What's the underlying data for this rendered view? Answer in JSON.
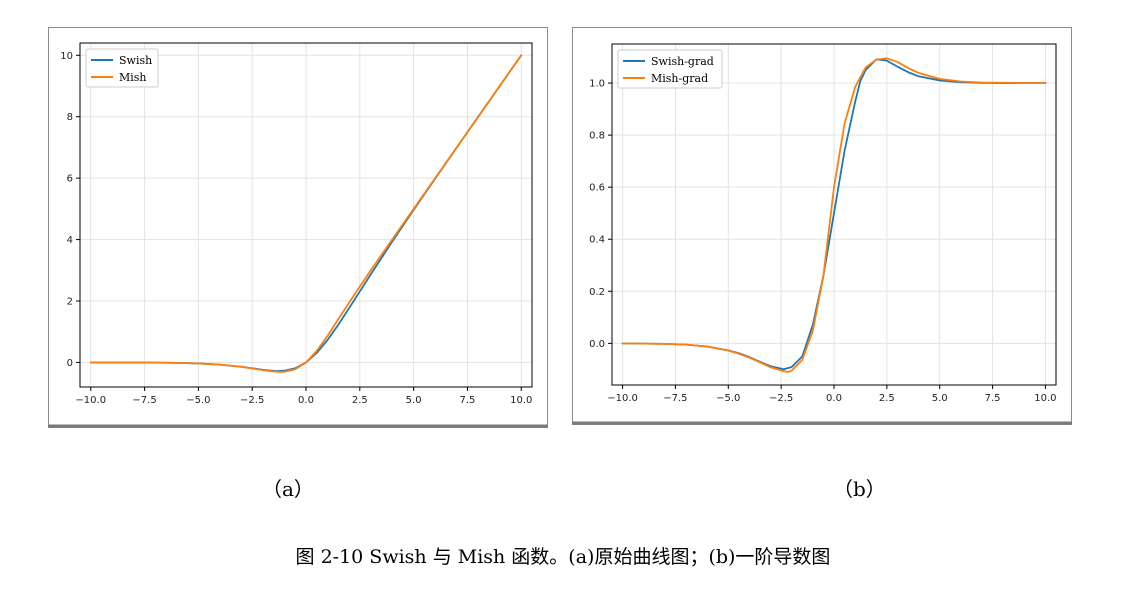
{
  "figure": {
    "caption": "图 2-10 Swish 与 Mish 函数。(a)原始曲线图；(b)一阶导数图",
    "sub_labels": [
      "（a）",
      "（b）"
    ]
  },
  "chart_data": [
    {
      "type": "line",
      "title": "",
      "xlabel": "",
      "ylabel": "",
      "xlim": [
        -10.5,
        10.5
      ],
      "ylim": [
        -0.8,
        10.4
      ],
      "xticks": [
        -10.0,
        -7.5,
        -5.0,
        -2.5,
        0.0,
        2.5,
        5.0,
        7.5,
        10.0
      ],
      "xtick_labels": [
        "−10.0",
        "−7.5",
        "−5.0",
        "−2.5",
        "0.0",
        "2.5",
        "5.0",
        "7.5",
        "10.0"
      ],
      "yticks": [
        0,
        2,
        4,
        6,
        8,
        10
      ],
      "ytick_labels": [
        "0",
        "2",
        "4",
        "6",
        "8",
        "10"
      ],
      "grid": true,
      "legend": "top-left",
      "series": [
        {
          "name": "Swish",
          "color": "#1f77b4",
          "x": [
            -10,
            -9,
            -8,
            -7,
            -6,
            -5,
            -4,
            -3,
            -2.5,
            -2,
            -1.5,
            -1.28,
            -1,
            -0.5,
            0,
            0.5,
            1,
            1.5,
            2,
            2.5,
            3,
            4,
            5,
            6,
            7,
            8,
            9,
            10
          ],
          "y": [
            0.0,
            -0.001,
            -0.003,
            -0.006,
            -0.015,
            -0.033,
            -0.072,
            -0.142,
            -0.189,
            -0.238,
            -0.274,
            -0.278,
            -0.269,
            -0.189,
            0.0,
            0.311,
            0.731,
            1.226,
            1.762,
            2.311,
            2.857,
            3.928,
            4.967,
            5.985,
            6.994,
            7.997,
            8.999,
            10.0
          ]
        },
        {
          "name": "Mish",
          "color": "#ff7f0e",
          "x": [
            -10,
            -9,
            -8,
            -7,
            -6,
            -5,
            -4,
            -3,
            -2.5,
            -2,
            -1.5,
            -1.2,
            -1,
            -0.5,
            0,
            0.5,
            1,
            1.5,
            2,
            2.5,
            3,
            4,
            5,
            6,
            7,
            8,
            9,
            10
          ],
          "y": [
            0.0,
            -0.001,
            -0.003,
            -0.006,
            -0.015,
            -0.034,
            -0.073,
            -0.146,
            -0.196,
            -0.252,
            -0.294,
            -0.309,
            -0.303,
            -0.222,
            0.0,
            0.375,
            0.865,
            1.411,
            1.944,
            2.473,
            2.987,
            3.997,
            5.0,
            6.0,
            7.0,
            8.0,
            9.0,
            10.0
          ]
        }
      ]
    },
    {
      "type": "line",
      "title": "",
      "xlabel": "",
      "ylabel": "",
      "xlim": [
        -10.5,
        10.5
      ],
      "ylim": [
        -0.16,
        1.15
      ],
      "xticks": [
        -10.0,
        -7.5,
        -5.0,
        -2.5,
        0.0,
        2.5,
        5.0,
        7.5,
        10.0
      ],
      "xtick_labels": [
        "−10.0",
        "−7.5",
        "−5.0",
        "−2.5",
        "0.0",
        "2.5",
        "5.0",
        "7.5",
        "10.0"
      ],
      "yticks": [
        0.0,
        0.2,
        0.4,
        0.6,
        0.8,
        1.0
      ],
      "ytick_labels": [
        "0.0",
        "0.2",
        "0.4",
        "0.6",
        "0.8",
        "1.0"
      ],
      "grid": true,
      "legend": "top-left",
      "series": [
        {
          "name": "Swish-grad",
          "color": "#1f77b4",
          "x": [
            -10,
            -9,
            -8,
            -7,
            -6,
            -5,
            -4.5,
            -4,
            -3.5,
            -3,
            -2.5,
            -2.4,
            -2,
            -1.5,
            -1,
            -0.5,
            0,
            0.5,
            1,
            1.25,
            1.5,
            2,
            2.5,
            3,
            3.5,
            4,
            5,
            6,
            7,
            8,
            9,
            10
          ],
          "y": [
            0.0,
            -0.001,
            -0.002,
            -0.005,
            -0.012,
            -0.027,
            -0.038,
            -0.053,
            -0.071,
            -0.088,
            -0.097,
            -0.1,
            -0.091,
            -0.05,
            0.072,
            0.26,
            0.5,
            0.74,
            0.928,
            1.009,
            1.05,
            1.091,
            1.086,
            1.063,
            1.042,
            1.026,
            1.01,
            1.003,
            1.001,
            1.0,
            1.0,
            1.0
          ]
        },
        {
          "name": "Mish-grad",
          "color": "#ff7f0e",
          "x": [
            -10,
            -9,
            -8,
            -7,
            -6,
            -5,
            -4.5,
            -4,
            -3.5,
            -3,
            -2.5,
            -2.2,
            -2,
            -1.5,
            -1,
            -0.5,
            0,
            0.5,
            1,
            1.5,
            2,
            2.5,
            3,
            3.5,
            4,
            5,
            6,
            7,
            8,
            9,
            10
          ],
          "y": [
            0.0,
            -0.001,
            -0.002,
            -0.005,
            -0.012,
            -0.028,
            -0.04,
            -0.055,
            -0.073,
            -0.092,
            -0.104,
            -0.11,
            -0.105,
            -0.063,
            0.049,
            0.26,
            0.6,
            0.845,
            0.985,
            1.06,
            1.09,
            1.095,
            1.081,
            1.058,
            1.039,
            1.016,
            1.006,
            1.002,
            1.001,
            1.0,
            1.0
          ]
        }
      ]
    }
  ]
}
